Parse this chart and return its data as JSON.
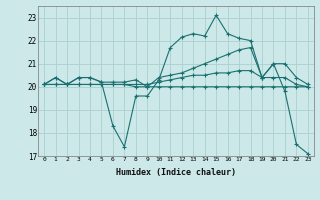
{
  "xlabel": "Humidex (Indice chaleur)",
  "background_color": "#cce8e8",
  "grid_color": "#aad0d0",
  "line_color": "#1a7070",
  "xlim": [
    -0.5,
    23.5
  ],
  "ylim": [
    17,
    23.5
  ],
  "xticks": [
    0,
    1,
    2,
    3,
    4,
    5,
    6,
    7,
    8,
    9,
    10,
    11,
    12,
    13,
    14,
    15,
    16,
    17,
    18,
    19,
    20,
    21,
    22,
    23
  ],
  "yticks": [
    17,
    18,
    19,
    20,
    21,
    22,
    23
  ],
  "line1_x": [
    0,
    1,
    2,
    3,
    4,
    5,
    6,
    7,
    8,
    9,
    10,
    11,
    12,
    13,
    14,
    15,
    16,
    17,
    18,
    19,
    20,
    21,
    22,
    23
  ],
  "line1_y": [
    20.1,
    20.4,
    20.1,
    20.4,
    20.4,
    20.2,
    18.3,
    17.4,
    19.6,
    19.6,
    20.3,
    21.7,
    22.15,
    22.3,
    22.2,
    23.1,
    22.3,
    22.1,
    22.0,
    20.4,
    21.0,
    19.8,
    17.5,
    17.1
  ],
  "line2_x": [
    0,
    1,
    2,
    3,
    4,
    5,
    6,
    7,
    8,
    9,
    10,
    11,
    12,
    13,
    14,
    15,
    16,
    17,
    18,
    19,
    20,
    21,
    22,
    23
  ],
  "line2_y": [
    20.1,
    20.4,
    20.1,
    20.4,
    20.4,
    20.2,
    20.2,
    20.2,
    20.3,
    20.0,
    20.4,
    20.5,
    20.6,
    20.8,
    21.0,
    21.2,
    21.4,
    21.6,
    21.7,
    20.4,
    21.0,
    21.0,
    20.4,
    20.1
  ],
  "line3_x": [
    0,
    1,
    2,
    3,
    4,
    5,
    6,
    7,
    8,
    9,
    10,
    11,
    12,
    13,
    14,
    15,
    16,
    17,
    18,
    19,
    20,
    21,
    22,
    23
  ],
  "line3_y": [
    20.1,
    20.1,
    20.1,
    20.1,
    20.1,
    20.1,
    20.1,
    20.1,
    20.1,
    20.1,
    20.2,
    20.3,
    20.4,
    20.5,
    20.5,
    20.6,
    20.6,
    20.7,
    20.7,
    20.4,
    20.4,
    20.4,
    20.1,
    20.0
  ],
  "line4_x": [
    0,
    1,
    2,
    3,
    4,
    5,
    6,
    7,
    8,
    9,
    10,
    11,
    12,
    13,
    14,
    15,
    16,
    17,
    18,
    19,
    20,
    21,
    22,
    23
  ],
  "line4_y": [
    20.1,
    20.1,
    20.1,
    20.1,
    20.1,
    20.1,
    20.1,
    20.1,
    20.0,
    20.0,
    20.0,
    20.0,
    20.0,
    20.0,
    20.0,
    20.0,
    20.0,
    20.0,
    20.0,
    20.0,
    20.0,
    20.0,
    20.0,
    20.0
  ]
}
